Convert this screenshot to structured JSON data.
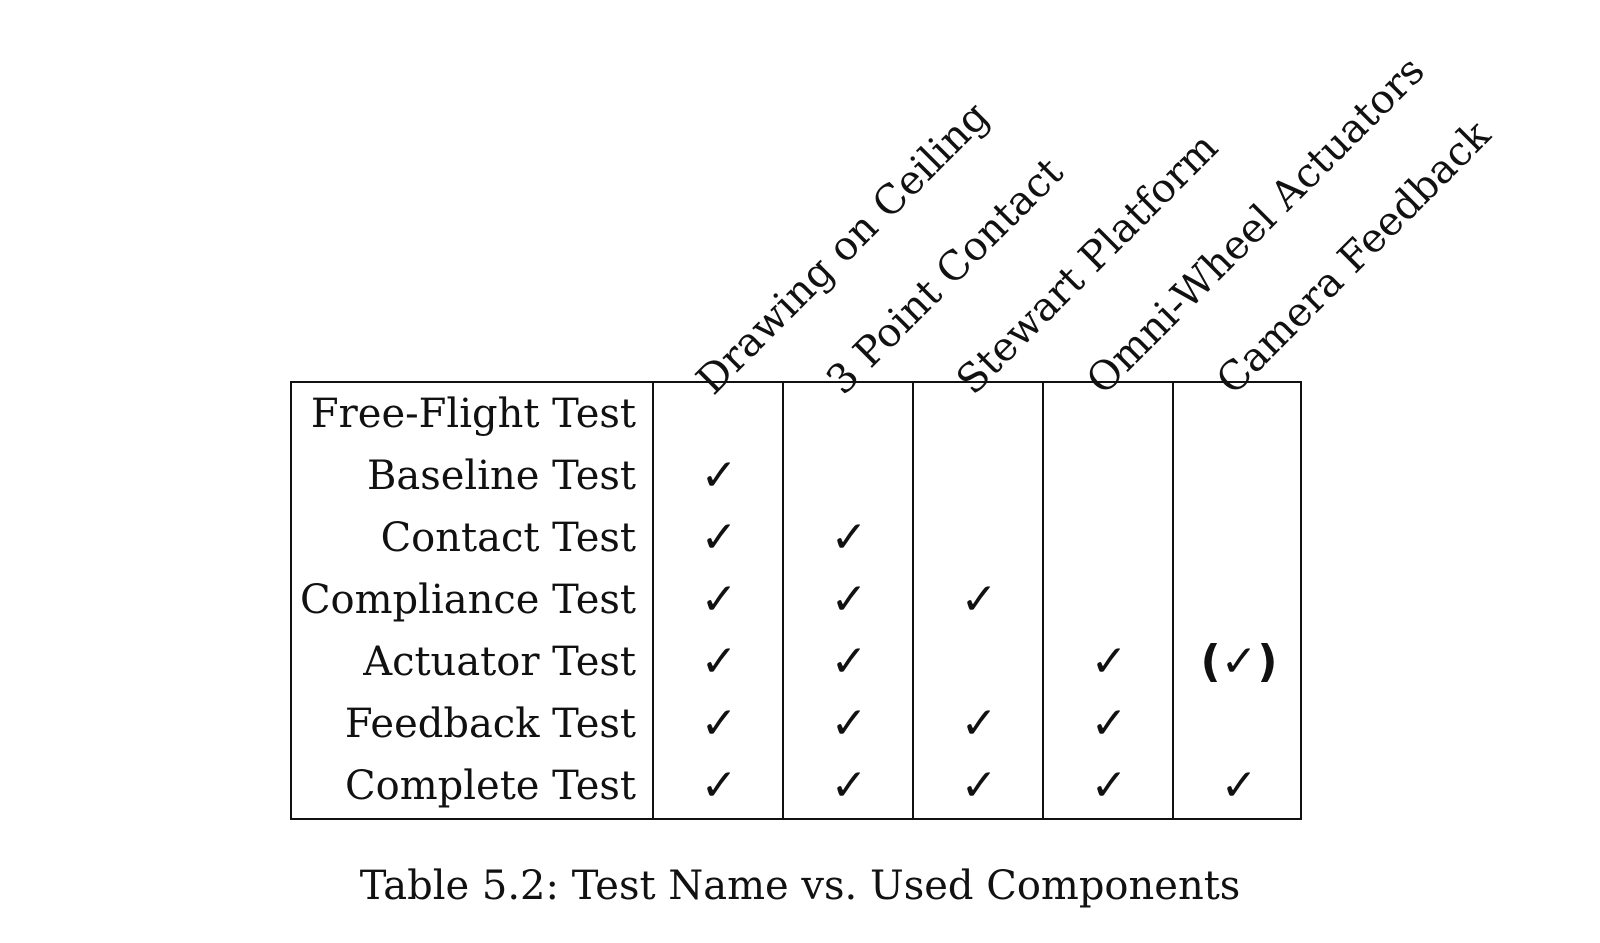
{
  "columns": [
    "Drawing on Ceiling",
    "3 Point Contact",
    "Stewart Platform",
    "Omni-Wheel Actuators",
    "Camera Feedback"
  ],
  "rows": [
    {
      "label": "Free-Flight Test",
      "marks": [
        "",
        "",
        "",
        "",
        ""
      ]
    },
    {
      "label": "Baseline Test",
      "marks": [
        "✓",
        "",
        "",
        "",
        ""
      ]
    },
    {
      "label": "Contact Test",
      "marks": [
        "✓",
        "✓",
        "",
        "",
        ""
      ]
    },
    {
      "label": "Compliance Test",
      "marks": [
        "✓",
        "✓",
        "✓",
        "",
        ""
      ]
    },
    {
      "label": "Actuator Test",
      "marks": [
        "✓",
        "✓",
        "",
        "✓",
        "(✓)"
      ]
    },
    {
      "label": "Feedback Test",
      "marks": [
        "✓",
        "✓",
        "✓",
        "✓",
        ""
      ]
    },
    {
      "label": "Complete Test",
      "marks": [
        "✓",
        "✓",
        "✓",
        "✓",
        "✓"
      ]
    }
  ],
  "caption": "Table 5.2: Test Name vs. Used Components"
}
